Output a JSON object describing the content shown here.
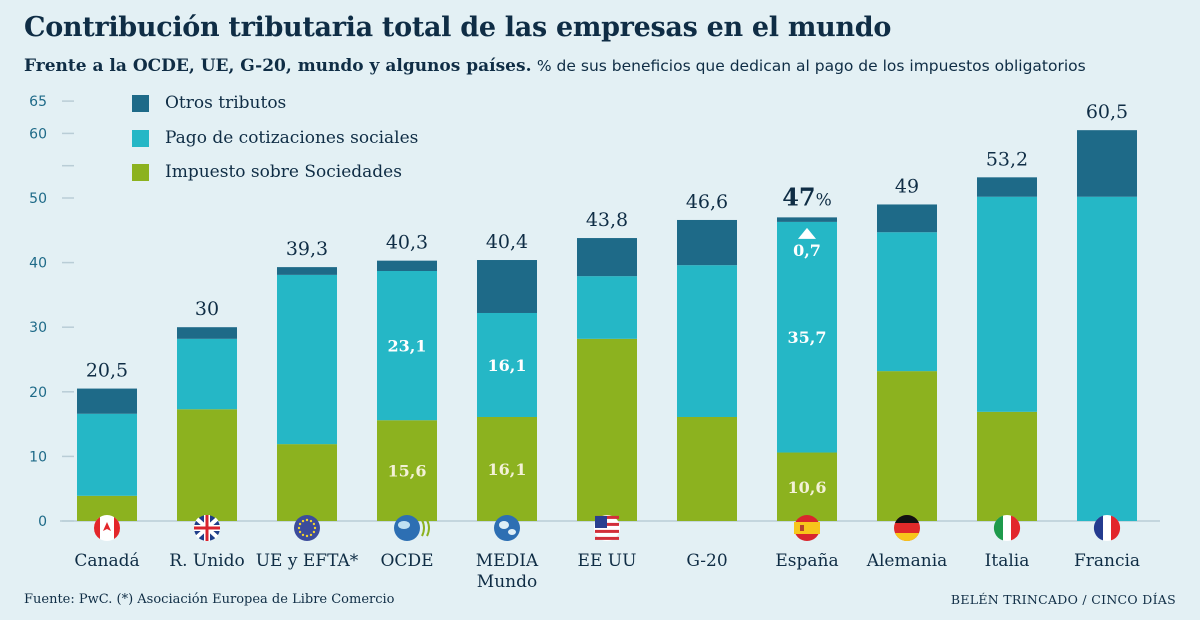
{
  "title": "Contribución tributaria total de las empresas en el mundo",
  "subtitle_bold": "Frente a la  OCDE, UE, G-20, mundo y algunos países.",
  "subtitle_rest": "% de sus beneficios que dedican al pago de los impuestos obligatorios",
  "source": "Fuente: PwC. (*) Asociación Europea de Libre Comercio",
  "credit": "BELÉN TRINCADO / CINCO DÍAS",
  "chart_data": {
    "type": "bar",
    "stacked": true,
    "categories": [
      "Canadá",
      "R. Unido",
      "UE y EFTA*",
      "OCDE",
      "MEDIA Mundo",
      "EE UU",
      "G-20",
      "España",
      "Alemania",
      "Italia",
      "Francia"
    ],
    "category_icons": [
      "flag-canada-icon",
      "flag-uk-icon",
      "flag-eu-icon",
      "oecd-logo-icon",
      "globe-icon",
      "flag-usa-icon",
      "none",
      "flag-spain-icon",
      "flag-germany-icon",
      "flag-italy-icon",
      "flag-france-icon"
    ],
    "series": [
      {
        "name": "Impuesto sobre Sociedades",
        "color": "#8cb21f",
        "values": [
          3.9,
          17.3,
          11.9,
          15.6,
          16.1,
          28.2,
          16.1,
          10.6,
          23.2,
          16.9,
          0
        ]
      },
      {
        "name": "Pago de cotizaciones sociales",
        "color": "#25b7c6",
        "values": [
          12.7,
          10.9,
          26.2,
          23.1,
          16.1,
          9.7,
          23.5,
          35.7,
          21.5,
          33.3,
          50.2
        ]
      },
      {
        "name": "Otros tributos",
        "color": "#1e6a88",
        "values": [
          3.9,
          1.8,
          1.2,
          1.6,
          8.2,
          5.9,
          7.0,
          0.7,
          4.3,
          3.0,
          10.3
        ]
      }
    ],
    "total_labels": [
      "20,5",
      "30",
      "39,3",
      "40,3",
      "40,4",
      "43,8",
      "46,6",
      "47",
      "49",
      "53,2",
      "60,5"
    ],
    "highlight_suffix": "%",
    "segment_labels": [
      {
        "category": "OCDE",
        "series": "Pago de cotizaciones sociales",
        "text": "23,1"
      },
      {
        "category": "OCDE",
        "series": "Impuesto sobre Sociedades",
        "text": "15,6"
      },
      {
        "category": "MEDIA Mundo",
        "series": "Pago de cotizaciones sociales",
        "text": "16,1"
      },
      {
        "category": "MEDIA Mundo",
        "series": "Impuesto sobre Sociedades",
        "text": "16,1"
      },
      {
        "category": "España",
        "series": "Pago de cotizaciones sociales",
        "text": "35,7"
      },
      {
        "category": "España",
        "series": "Impuesto sobre Sociedades",
        "text": "10,6"
      },
      {
        "category": "España",
        "series": "Otros tributos",
        "text": "0,7"
      }
    ],
    "yticks": [
      "0",
      "10",
      "20",
      "30",
      "40",
      "50",
      "60",
      "65"
    ],
    "ylim": [
      0,
      65
    ],
    "grid": false,
    "legend": "top-left",
    "xlabel": "",
    "ylabel": ""
  }
}
